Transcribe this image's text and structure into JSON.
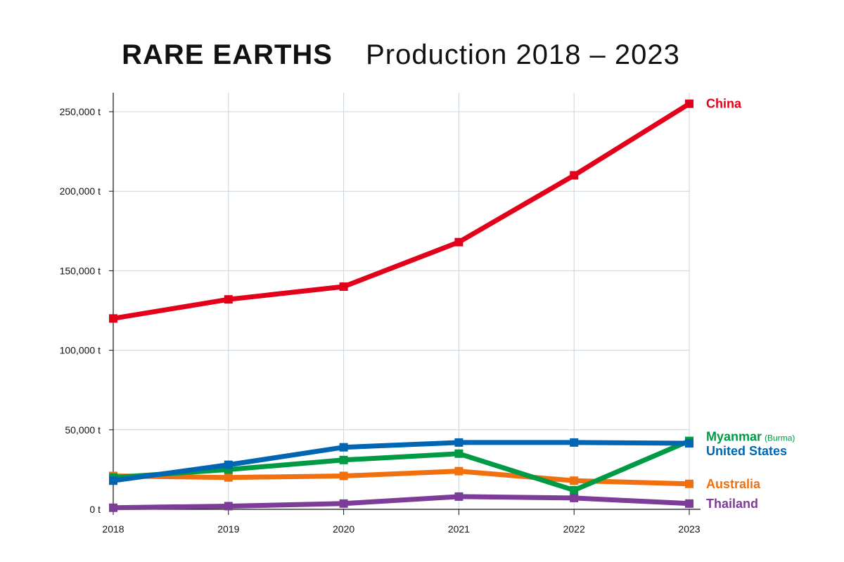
{
  "header": {
    "title_main": "RARE EARTHS",
    "title_sub": "Production 2018 – 2023"
  },
  "chart_data": {
    "type": "line",
    "title": "RARE EARTHS   Production 2018 – 2023",
    "xlabel": "",
    "ylabel": "",
    "x": [
      2018,
      2019,
      2020,
      2021,
      2022,
      2023
    ],
    "x_tick_labels": [
      "2018",
      "2019",
      "2020",
      "2021",
      "2022",
      "2023"
    ],
    "ylim": [
      0,
      260000
    ],
    "y_ticks": [
      0,
      50000,
      100000,
      150000,
      200000,
      250000
    ],
    "y_tick_labels": [
      "0 t",
      "50,000 t",
      "100,000 t",
      "150,000 t",
      "200,000 t",
      "250,000 t"
    ],
    "grid": true,
    "legend": "direct labels at right end of lines",
    "series": [
      {
        "name": "China",
        "note": "",
        "color": "#e3001b",
        "values": [
          120000,
          132000,
          140000,
          168000,
          210000,
          255000
        ]
      },
      {
        "name": "Myanmar",
        "note": "(Burma)",
        "color": "#009a44",
        "values": [
          20000,
          25000,
          31000,
          35000,
          12000,
          43000
        ]
      },
      {
        "name": "United States",
        "note": "",
        "color": "#0066b3",
        "values": [
          18000,
          28000,
          39000,
          42000,
          42000,
          41500
        ]
      },
      {
        "name": "Australia",
        "note": "",
        "color": "#f0700f",
        "values": [
          21000,
          20000,
          21000,
          24000,
          18000,
          16000
        ]
      },
      {
        "name": "Thailand",
        "note": "",
        "color": "#7d3c98",
        "values": [
          1000,
          2000,
          3600,
          8000,
          7100,
          3600
        ]
      }
    ]
  }
}
